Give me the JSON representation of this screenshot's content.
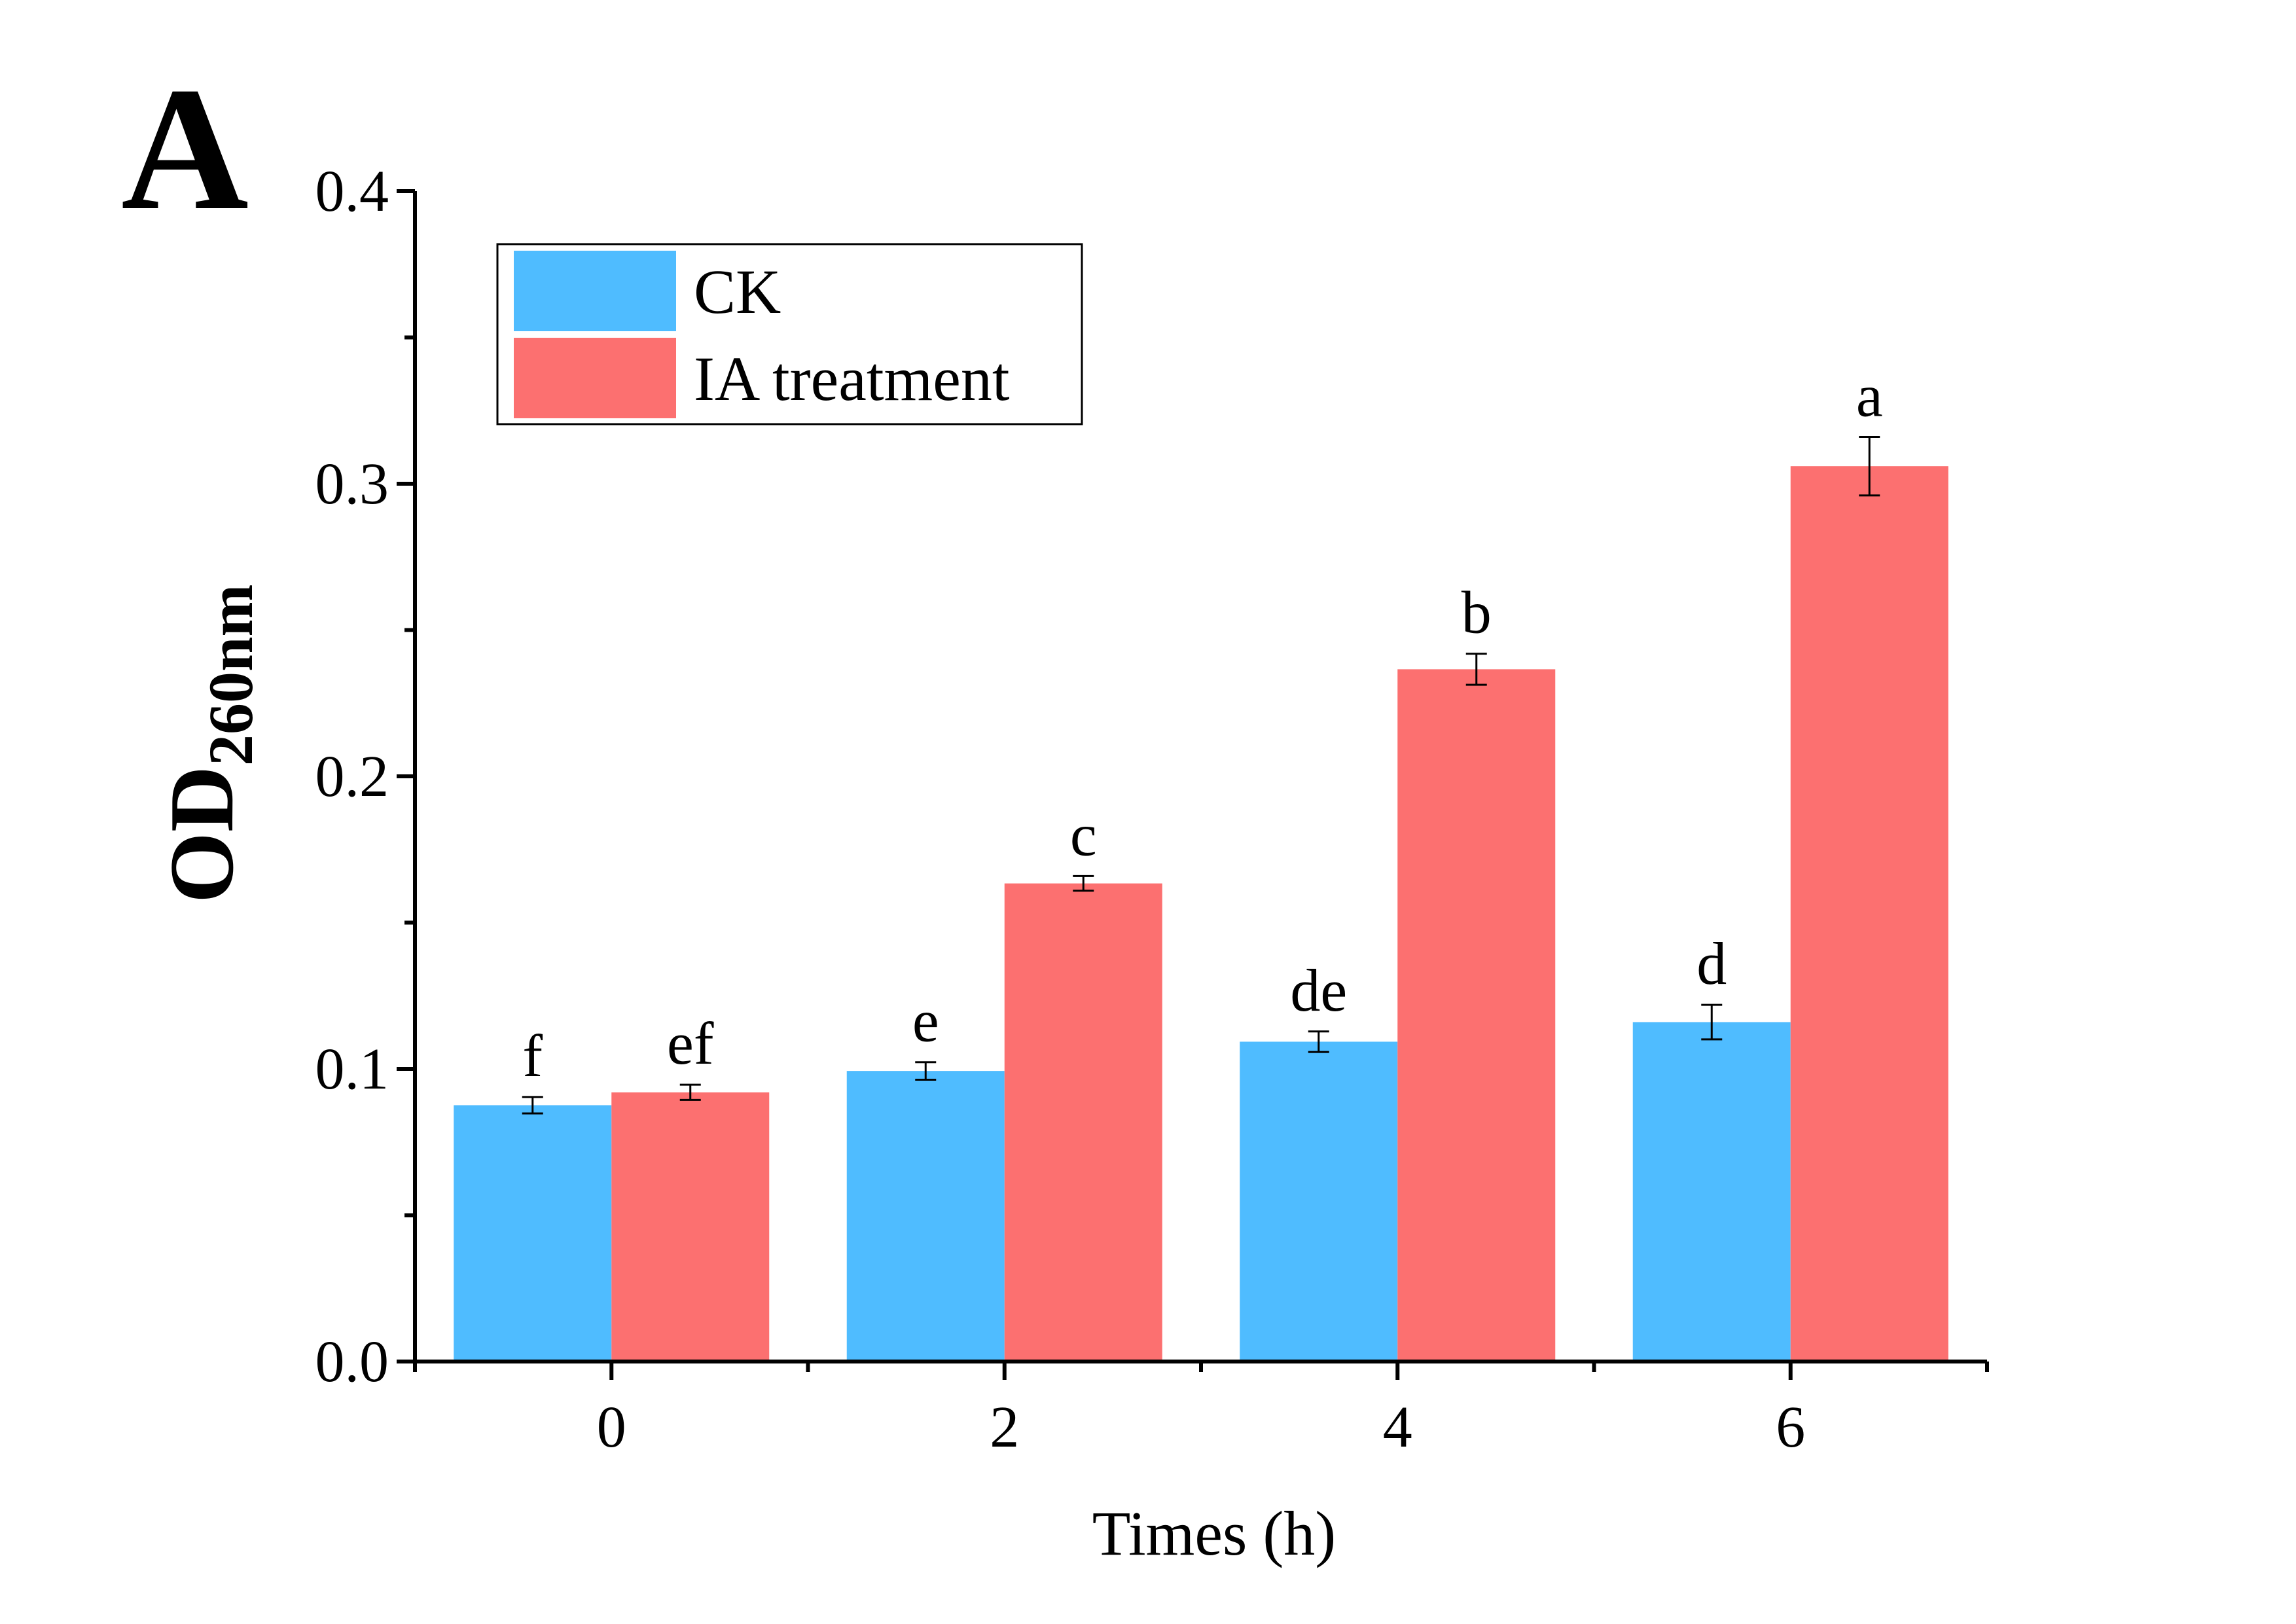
{
  "panel_label": "A",
  "chart_data": {
    "type": "bar",
    "title": "",
    "xlabel": "Times (h)",
    "ylabel": "OD",
    "ylabel_subscript": "260nm",
    "categories": [
      "0",
      "2",
      "4",
      "6"
    ],
    "ylim": [
      0,
      0.4
    ],
    "yticks": [
      "0.0",
      "0.1",
      "0.2",
      "0.3",
      "0.4"
    ],
    "grid": false,
    "legend_position": "top-left",
    "series": [
      {
        "name": "CK",
        "color": "#4FBCFF",
        "values": [
          0.0876,
          0.0993,
          0.1093,
          0.116
        ],
        "errors": [
          0.0028,
          0.003,
          0.0035,
          0.0059
        ],
        "labels": [
          "f",
          "e",
          "de",
          "d"
        ]
      },
      {
        "name": "IA treatment",
        "color": "#FC7070",
        "values": [
          0.092,
          0.1634,
          0.2366,
          0.306
        ],
        "errors": [
          0.0026,
          0.0025,
          0.0053,
          0.01
        ],
        "labels": [
          "ef",
          "c",
          "b",
          "a"
        ]
      }
    ]
  }
}
